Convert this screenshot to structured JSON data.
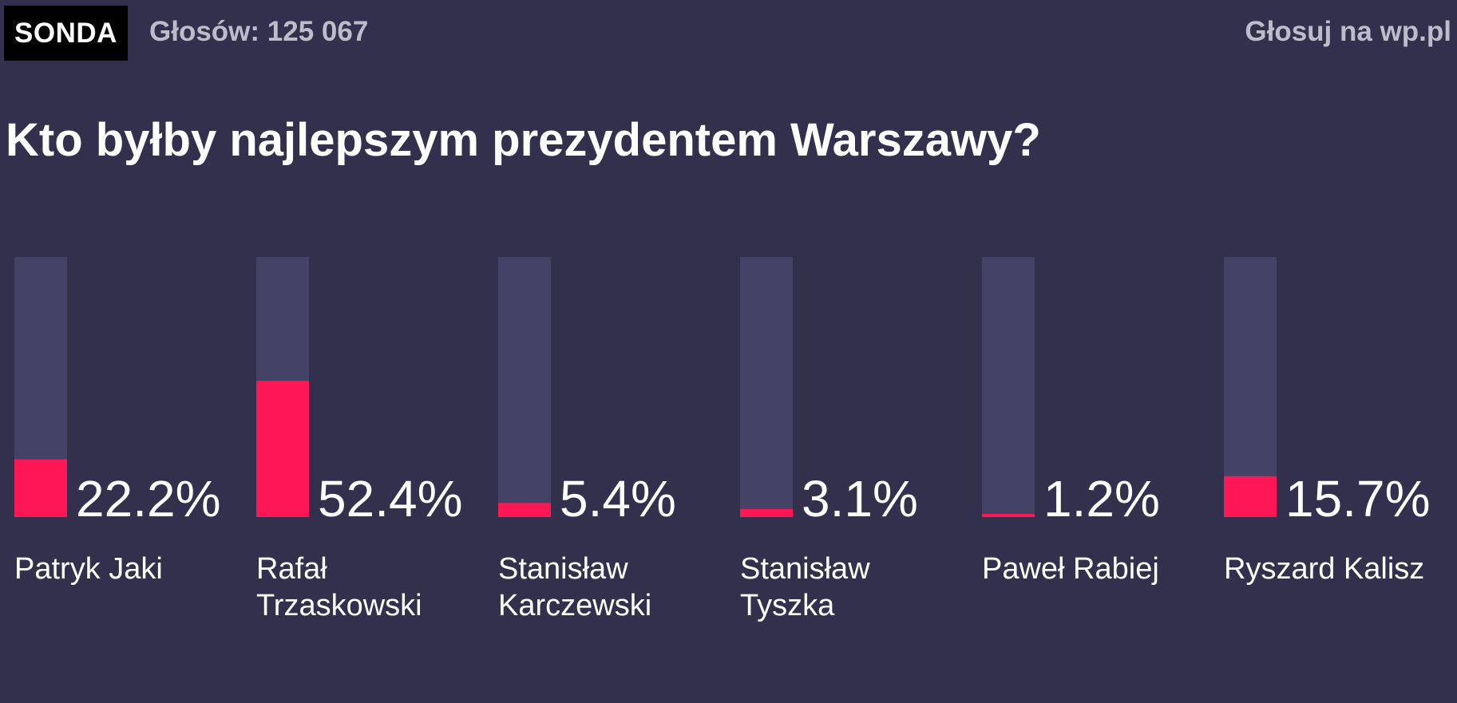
{
  "header": {
    "badge": "SONDA",
    "votes": "Głosów: 125 067",
    "vote_link": "Głosuj na wp.pl"
  },
  "question": "Kto byłby najlepszym prezydentem Warszawy?",
  "colors": {
    "background": "#32304d",
    "bar_track": "#444366",
    "bar_fill": "#ff1654",
    "text": "#ffffff",
    "muted_text": "#bdbccb"
  },
  "chart_data": {
    "type": "bar",
    "title": "Kto byłby najlepszym prezydentem Warszawy?",
    "categories": [
      "Patryk Jaki",
      "Rafał Trzaskowski",
      "Stanisław Karczewski",
      "Stanisław Tyszka",
      "Paweł Rabiej",
      "Ryszard Kalisz"
    ],
    "name_lines": [
      [
        "Patryk Jaki"
      ],
      [
        "Rafał",
        "Trzaskowski"
      ],
      [
        "Stanisław",
        "Karczewski"
      ],
      [
        "Stanisław",
        "Tyszka"
      ],
      [
        "Paweł Rabiej"
      ],
      [
        "Ryszard Kalisz"
      ]
    ],
    "values": [
      22.2,
      52.4,
      5.4,
      3.1,
      1.2,
      15.7
    ],
    "value_labels": [
      "22.2%",
      "52.4%",
      "5.4%",
      "3.1%",
      "1.2%",
      "15.7%"
    ],
    "ylim": [
      0,
      100
    ],
    "unit": "%",
    "grid": false,
    "legend": "none"
  }
}
